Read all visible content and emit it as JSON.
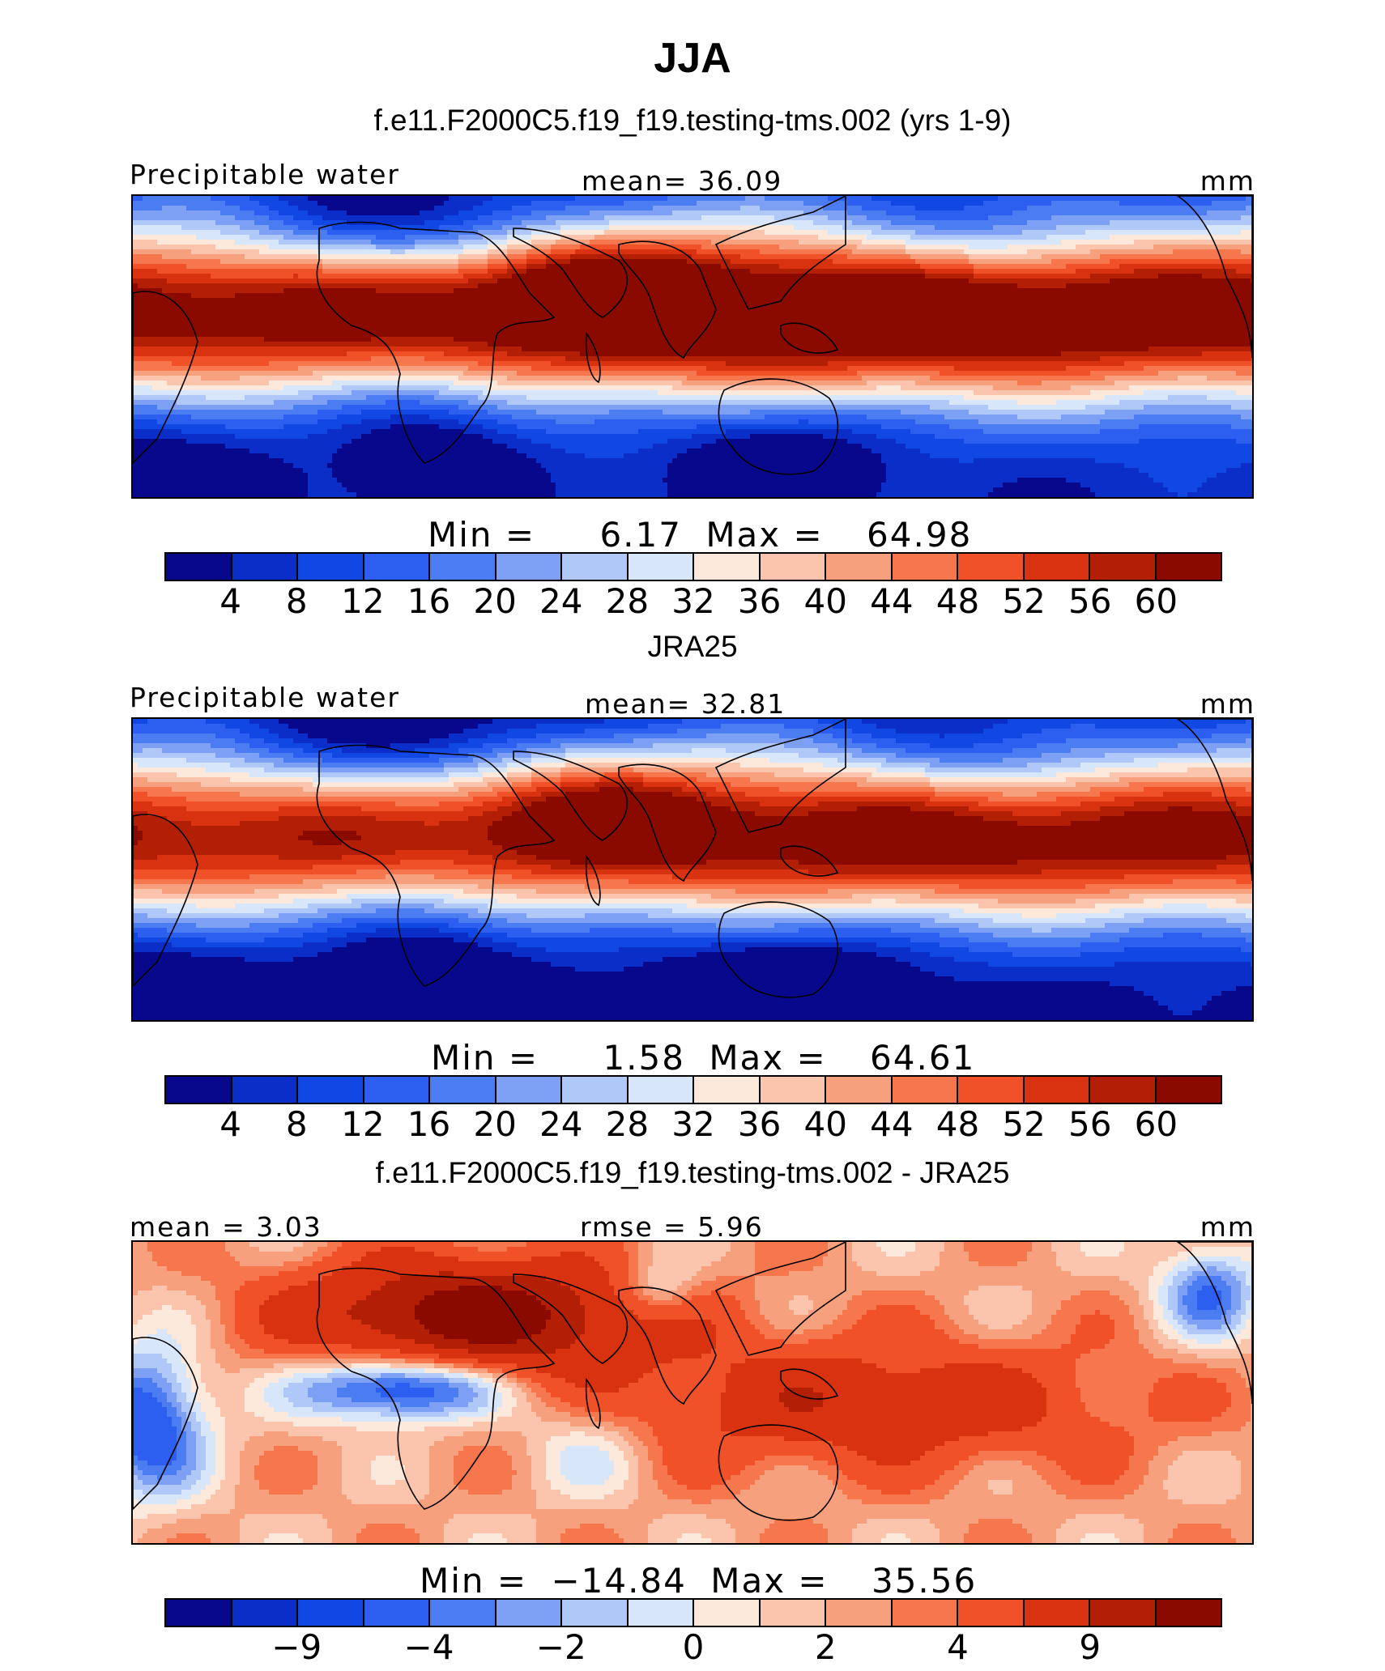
{
  "season_title": "JJA",
  "colors": [
    "#08088c",
    "#0a2ec7",
    "#1147e2",
    "#2c5ff0",
    "#4b7cf2",
    "#7d9ff4",
    "#b0c8f7",
    "#d8e6f9",
    "#fde8dc",
    "#fbc5ad",
    "#f7a07e",
    "#f6774e",
    "#f05128",
    "#d93210",
    "#b31f05",
    "#8a0a00"
  ],
  "panels": [
    {
      "title": "f.e11.F2000C5.f19_f19.testing-tms.002 (yrs 1-9)",
      "left_label": "Precipitable water",
      "center_label": "mean=   36.09",
      "right_label": "mm",
      "min_label": "Min  =",
      "min_value": "6.17",
      "max_label": "Max  =",
      "max_value": "64.98",
      "ticks": [
        "4",
        "8",
        "12",
        "16",
        "20",
        "24",
        "28",
        "32",
        "36",
        "40",
        "44",
        "48",
        "52",
        "56",
        "60"
      ],
      "field_kind": "model"
    },
    {
      "title": "JRA25",
      "left_label": "Precipitable water",
      "center_label": "mean=   32.81",
      "right_label": "mm",
      "min_label": "Min  =",
      "min_value": "1.58",
      "max_label": "Max  =",
      "max_value": "64.61",
      "ticks": [
        "4",
        "8",
        "12",
        "16",
        "20",
        "24",
        "28",
        "32",
        "36",
        "40",
        "44",
        "48",
        "52",
        "56",
        "60"
      ],
      "field_kind": "obs"
    },
    {
      "title": "f.e11.F2000C5.f19_f19.testing-tms.002 - JRA25",
      "left_label": "mean =    3.03",
      "center_label": "rmse =     5.96",
      "right_label": "mm",
      "min_label": "Min  =",
      "min_value": "−14.84",
      "max_label": "Max  =",
      "max_value": "35.56",
      "ticks": [
        "−9",
        "−4",
        "−2",
        "0",
        "2",
        "4",
        "9"
      ],
      "field_kind": "diff"
    }
  ]
}
